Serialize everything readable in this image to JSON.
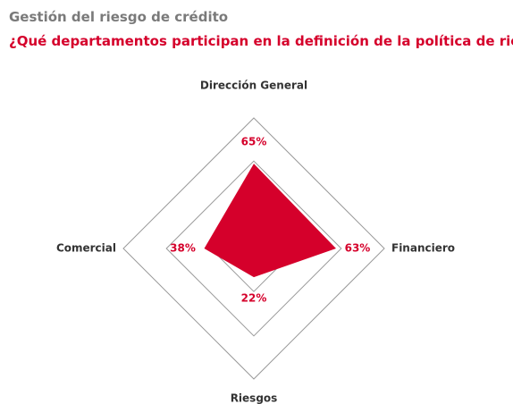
{
  "chart_data": {
    "type": "radar",
    "title": "Gestión del riesgo de crédito",
    "subtitle": "¿Qué departamentos participan en la definición de la política de riesgos?",
    "categories": [
      "Dirección General",
      "Financiero",
      "Riesgos",
      "Comercial"
    ],
    "values": [
      65,
      63,
      22,
      38
    ],
    "value_labels": [
      "65%",
      "63%",
      "22%",
      "38%"
    ],
    "color": "#d5002b",
    "rlim": [
      0,
      100
    ],
    "rticks": [
      33,
      67,
      100
    ],
    "grid": true
  }
}
